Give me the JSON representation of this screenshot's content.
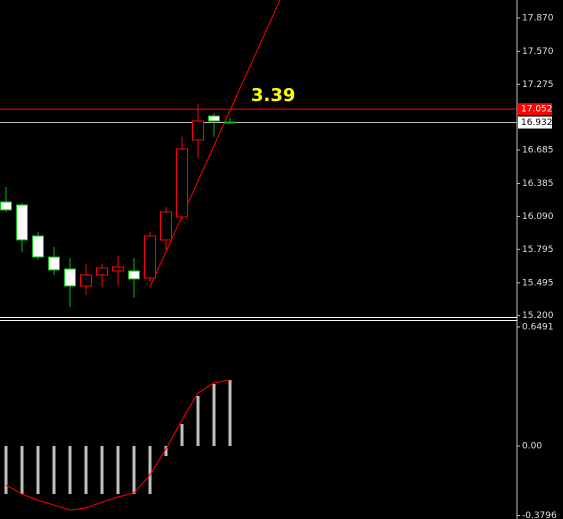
{
  "chart_data": [
    {
      "type": "candlestick",
      "categories": [
        null,
        null,
        null,
        null,
        null,
        null,
        null,
        null,
        null,
        null,
        null,
        null,
        null,
        null,
        null
      ],
      "open": [
        16.22,
        16.193,
        15.915,
        15.726,
        15.619,
        15.466,
        15.565,
        15.601,
        15.601,
        15.538,
        15.879,
        16.085,
        16.776,
        16.991,
        16.937
      ],
      "high": [
        16.354,
        16.211,
        15.951,
        15.816,
        15.717,
        15.664,
        15.664,
        15.735,
        15.717,
        15.951,
        16.175,
        16.803,
        17.099,
        17.018,
        16.973
      ],
      "low": [
        16.13,
        15.771,
        15.7,
        15.565,
        15.278,
        15.386,
        15.457,
        15.475,
        15.359,
        15.502,
        15.789,
        16.067,
        16.614,
        16.803,
        16.919
      ],
      "close": [
        16.148,
        15.879,
        15.726,
        15.61,
        15.466,
        15.565,
        15.628,
        15.637,
        15.529,
        15.915,
        16.13,
        16.695,
        16.946,
        16.946,
        16.932
      ],
      "bull_color": "#ff0000",
      "bear_color": "#ffffff",
      "ylim": [
        15.188,
        18.031
      ],
      "yticks": [
        {
          "value": 17.87,
          "label": "17.870"
        },
        {
          "value": 17.57,
          "label": "17.570"
        },
        17.275,
        16.685,
        16.385,
        {
          "value": 16.09,
          "label": "16.090"
        },
        15.795,
        15.495,
        {
          "value": 15.2,
          "label": "15.200"
        }
      ],
      "price_lines": [
        {
          "value": 17.052,
          "color": "#ff0000"
        },
        {
          "value": 16.932,
          "color": "#c0c0c0"
        }
      ],
      "trend_line": {
        "x": [
          9,
          17.125
        ],
        "y": [
          15.457,
          18.031
        ],
        "color": "#ff0000"
      },
      "annotation": "3.39"
    },
    {
      "type": "bar",
      "categories": [
        null,
        null,
        null,
        null,
        null,
        null,
        null,
        null,
        null,
        null,
        null,
        null,
        null,
        null,
        null
      ],
      "series": [
        {
          "name": null,
          "kind": "bar",
          "color": "#c0c0c0",
          "values": [
            -0.262,
            -0.262,
            -0.262,
            -0.262,
            -0.262,
            -0.262,
            -0.262,
            -0.262,
            -0.262,
            -0.262,
            -0.055,
            0.12,
            0.273,
            0.338,
            0.36
          ]
        },
        {
          "name": null,
          "kind": "line",
          "color": "#ff0000",
          "values": [
            -0.213,
            -0.262,
            -0.295,
            -0.322,
            -0.349,
            -0.338,
            -0.306,
            -0.278,
            -0.256,
            -0.158,
            -0.016,
            0.142,
            0.289,
            0.344,
            0.36
          ]
        }
      ],
      "ylim": [
        -0.398,
        0.687
      ],
      "yticks": [
        {
          "value": 0.6491,
          "label": "0.6491"
        },
        {
          "value": 0,
          "label": "0.00"
        },
        -0.3796
      ]
    }
  ]
}
